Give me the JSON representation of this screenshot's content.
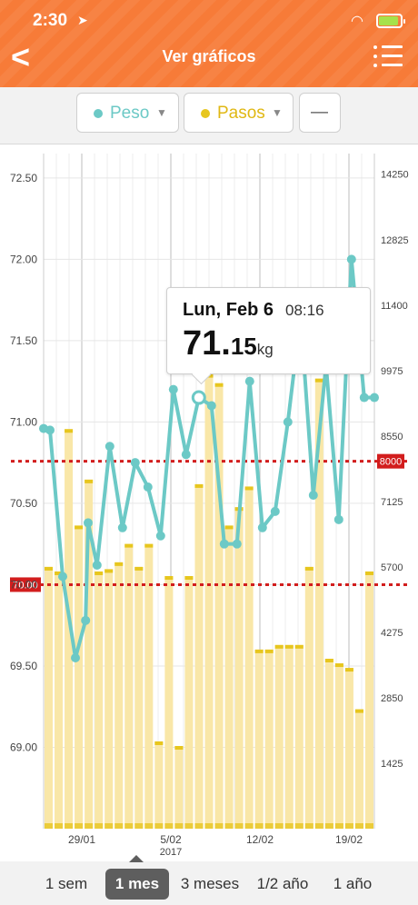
{
  "status": {
    "time": "2:30",
    "location_icon": "location-arrow-icon",
    "wifi_icon": "wifi-icon",
    "battery_icon": "battery-charging-icon"
  },
  "nav": {
    "back_icon": "chevron-left-icon",
    "title": "Ver gráficos",
    "menu_icon": "list-menu-icon"
  },
  "toolbar": {
    "series": [
      {
        "label": "Peso",
        "color": "#6cc9c6"
      },
      {
        "label": "Pasos",
        "color": "#e7c61e"
      }
    ],
    "third_label": "—"
  },
  "tooltip": {
    "date": "Lun, Feb 6",
    "time": "08:16",
    "value_int": "71.",
    "value_dec": "15",
    "unit": "kg"
  },
  "ranges": [
    "1 sem",
    "1 mes",
    "3 meses",
    "1/2 año",
    "1 año"
  ],
  "active_range": "1 mes",
  "colors": {
    "header": "#f77b38",
    "peso": "#6cc9c6",
    "pasos": "#f9e7a8",
    "pasos_cap": "#e7c61e",
    "target": "#d21d1d"
  },
  "chart_data": {
    "type": "bar+line",
    "left_axis": {
      "ticks": [
        "69.00",
        "69.50",
        "70.00",
        "70.50",
        "71.00",
        "71.50",
        "72.00",
        "72.50"
      ],
      "range": [
        68.5,
        72.65
      ]
    },
    "right_axis": {
      "ticks": [
        "1425",
        "2850",
        "4275",
        "5700",
        "7125",
        "8550",
        "9975",
        "11400",
        "12825",
        "14250"
      ],
      "range": [
        0,
        14700
      ]
    },
    "x_ticks": [
      {
        "label": "29/01",
        "day": 3
      },
      {
        "label": "5/02",
        "sub": "2017",
        "day": 10
      },
      {
        "label": "12/02",
        "day": 17
      },
      {
        "label": "19/02",
        "day": 24
      }
    ],
    "targets": [
      {
        "label": "8000",
        "axis": "right",
        "value": 8000
      },
      {
        "label": "70.00",
        "axis": "left",
        "value": 70.0
      }
    ],
    "steps": [
      5700,
      5600,
      8700,
      6600,
      7600,
      5600,
      5650,
      5800,
      6200,
      5700,
      6200,
      1900,
      5500,
      1800,
      5500,
      7500,
      9900,
      9700,
      6600,
      7000,
      7450,
      3900,
      3900,
      4000,
      4000,
      4000,
      5700,
      9800,
      3700,
      3600,
      3500,
      2600,
      5600
    ],
    "peso": [
      {
        "x": 0.0,
        "y": 70.96
      },
      {
        "x": 0.5,
        "y": 70.95
      },
      {
        "x": 1.5,
        "y": 70.05
      },
      {
        "x": 2.5,
        "y": 69.55
      },
      {
        "x": 3.3,
        "y": 69.78
      },
      {
        "x": 3.5,
        "y": 70.38
      },
      {
        "x": 4.2,
        "y": 70.12
      },
      {
        "x": 5.2,
        "y": 70.85
      },
      {
        "x": 6.2,
        "y": 70.35
      },
      {
        "x": 7.2,
        "y": 70.75
      },
      {
        "x": 8.2,
        "y": 70.6
      },
      {
        "x": 9.2,
        "y": 70.3
      },
      {
        "x": 10.2,
        "y": 71.2
      },
      {
        "x": 11.2,
        "y": 70.8
      },
      {
        "x": 12.2,
        "y": 71.15
      },
      {
        "x": 13.2,
        "y": 71.1
      },
      {
        "x": 14.2,
        "y": 70.25
      },
      {
        "x": 15.2,
        "y": 70.25
      },
      {
        "x": 16.2,
        "y": 71.25
      },
      {
        "x": 17.2,
        "y": 70.35
      },
      {
        "x": 18.2,
        "y": 70.45
      },
      {
        "x": 19.2,
        "y": 71.0
      },
      {
        "x": 20.2,
        "y": 71.65
      },
      {
        "x": 21.2,
        "y": 70.55
      },
      {
        "x": 22.2,
        "y": 71.35
      },
      {
        "x": 23.2,
        "y": 70.4
      },
      {
        "x": 24.2,
        "y": 72.0
      },
      {
        "x": 25.2,
        "y": 71.15
      },
      {
        "x": 26.0,
        "y": 71.15
      }
    ],
    "selected_index": 14
  }
}
